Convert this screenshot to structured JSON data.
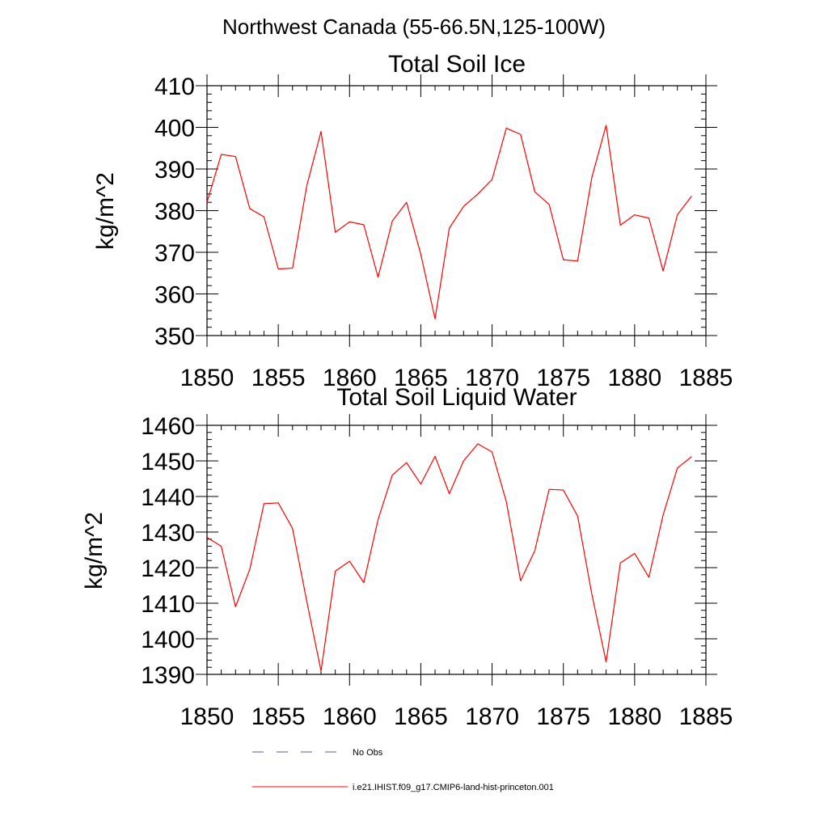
{
  "figure": {
    "suptitle": "Northwest Canada (55-66.5N,125-100W)"
  },
  "legend": {
    "items": [
      {
        "label": "No Obs",
        "color": "#5a5a9a",
        "style": "dashed"
      },
      {
        "label": "i.e21.IHIST.f09_g17.CMIP6-land-hist-princeton.001",
        "color": "#ff0000",
        "style": "solid"
      }
    ]
  },
  "chart_data": [
    {
      "type": "line",
      "title": "Total Soil Ice",
      "xlabel": "",
      "ylabel": "kg/m^2",
      "xlim": [
        1850,
        1885
      ],
      "ylim": [
        350,
        410
      ],
      "xticks": [
        1850,
        1855,
        1860,
        1865,
        1870,
        1875,
        1880,
        1885
      ],
      "yticks": [
        350,
        360,
        370,
        380,
        390,
        400,
        410
      ],
      "grid": false,
      "x": [
        1850,
        1851,
        1852,
        1853,
        1854,
        1855,
        1856,
        1857,
        1858,
        1859,
        1860,
        1861,
        1862,
        1863,
        1864,
        1865,
        1866,
        1867,
        1868,
        1869,
        1870,
        1871,
        1872,
        1873,
        1874,
        1875,
        1876,
        1877,
        1878,
        1879,
        1880,
        1881,
        1882,
        1883,
        1884
      ],
      "series": [
        {
          "name": "i.e21.IHIST.f09_g17.CMIP6-land-hist-princeton.001",
          "color": "#ff0000",
          "values": [
            382.0,
            393.5,
            393.0,
            380.5,
            378.5,
            366.0,
            366.2,
            386.0,
            399.0,
            374.8,
            377.3,
            376.6,
            364.0,
            377.5,
            382.0,
            369.5,
            354.0,
            375.8,
            381.0,
            384.0,
            387.5,
            399.8,
            398.3,
            384.5,
            381.5,
            368.2,
            367.9,
            388.0,
            400.5,
            376.5,
            379.0,
            378.2,
            365.5,
            379.0,
            383.5
          ]
        }
      ]
    },
    {
      "type": "line",
      "title": "Total Soil Liquid Water",
      "xlabel": "",
      "ylabel": "kg/m^2",
      "xlim": [
        1850,
        1885
      ],
      "ylim": [
        1390,
        1460
      ],
      "xticks": [
        1850,
        1855,
        1860,
        1865,
        1870,
        1875,
        1880,
        1885
      ],
      "yticks": [
        1390,
        1400,
        1410,
        1420,
        1430,
        1440,
        1450,
        1460
      ],
      "grid": false,
      "x": [
        1850,
        1851,
        1852,
        1853,
        1854,
        1855,
        1856,
        1857,
        1858,
        1859,
        1860,
        1861,
        1862,
        1863,
        1864,
        1865,
        1866,
        1867,
        1868,
        1869,
        1870,
        1871,
        1872,
        1873,
        1874,
        1875,
        1876,
        1877,
        1878,
        1879,
        1880,
        1881,
        1882,
        1883,
        1884
      ],
      "series": [
        {
          "name": "i.e21.IHIST.f09_g17.CMIP6-land-hist-princeton.001",
          "color": "#ff0000",
          "values": [
            1428.5,
            1426.0,
            1409.0,
            1419.5,
            1438.0,
            1438.2,
            1431.0,
            1410.5,
            1391.0,
            1419.0,
            1421.8,
            1415.8,
            1433.5,
            1446.0,
            1449.5,
            1443.5,
            1451.3,
            1440.8,
            1450.0,
            1454.8,
            1452.5,
            1438.5,
            1416.3,
            1424.8,
            1442.0,
            1441.8,
            1434.5,
            1412.5,
            1393.5,
            1421.3,
            1424.0,
            1417.3,
            1434.8,
            1448.0,
            1451.2
          ]
        }
      ]
    }
  ]
}
